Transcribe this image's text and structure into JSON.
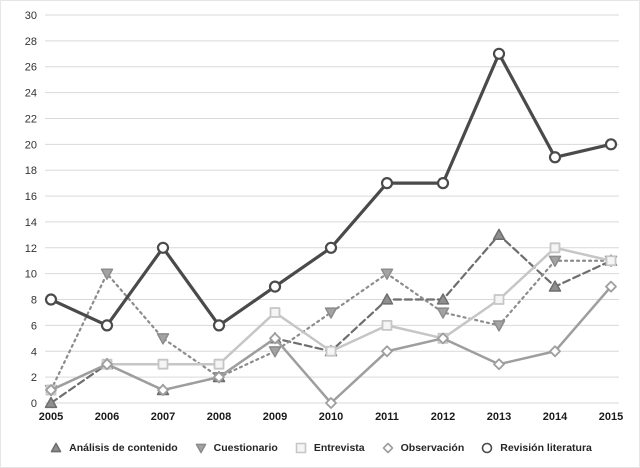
{
  "chart_data": {
    "type": "line",
    "title": "",
    "xlabel": "",
    "ylabel": "",
    "x": [
      "2005",
      "2006",
      "2007",
      "2008",
      "2009",
      "2010",
      "2011",
      "2012",
      "2013",
      "2014",
      "2015"
    ],
    "ylim": [
      0,
      30
    ],
    "ytick_step": 2,
    "grid": true,
    "legend_position": "bottom",
    "axis": {
      "tick_color": "#333333",
      "xlabel_color": "#1a1a1a",
      "grid_color": "#d9d9d9"
    },
    "series": [
      {
        "name": "Análisis de contenido",
        "values": [
          0,
          3,
          1,
          2,
          5,
          4,
          8,
          8,
          13,
          9,
          11
        ],
        "color": "#6e6e6e",
        "dash": "7 4",
        "width": 2.2,
        "marker": "triangle-up",
        "marker_fill": "#8f8f8f",
        "marker_size": 5.5,
        "marker_stroke": 1.5
      },
      {
        "name": "Cuestionario",
        "values": [
          1,
          10,
          5,
          2,
          4,
          7,
          10,
          7,
          6,
          11,
          11
        ],
        "color": "#8c8c8c",
        "dash": "2 4",
        "width": 2.2,
        "marker": "triangle-down",
        "marker_fill": "#a3a3a3",
        "marker_size": 5.5,
        "marker_stroke": 1.5
      },
      {
        "name": "Entrevista",
        "values": [
          1,
          3,
          3,
          3,
          7,
          4,
          6,
          5,
          8,
          12,
          11
        ],
        "color": "#c6c6c6",
        "dash": "",
        "width": 2.5,
        "marker": "square",
        "marker_fill": "#f5f5f5",
        "marker_size": 4.5,
        "marker_stroke": 1.8
      },
      {
        "name": "Observación",
        "values": [
          1,
          3,
          1,
          2,
          5,
          0,
          4,
          5,
          3,
          4,
          9
        ],
        "color": "#9e9e9e",
        "dash": "",
        "width": 2.5,
        "marker": "diamond",
        "marker_fill": "#ffffff",
        "marker_size": 5,
        "marker_stroke": 1.8
      },
      {
        "name": "Revisión literatura",
        "values": [
          8,
          6,
          12,
          6,
          9,
          12,
          17,
          17,
          27,
          19,
          20
        ],
        "color": "#4a4a4a",
        "dash": "",
        "width": 3.2,
        "marker": "circle",
        "marker_fill": "#ffffff",
        "marker_size": 5,
        "marker_stroke": 2.2
      }
    ]
  }
}
